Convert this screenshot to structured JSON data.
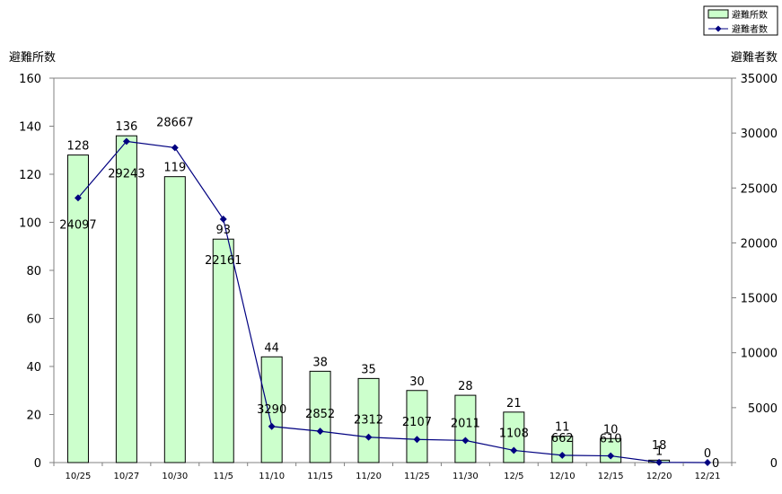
{
  "chart_data": {
    "type": "bar",
    "categories": [
      "10/25",
      "10/27",
      "10/30",
      "11/5",
      "11/10",
      "11/15",
      "11/20",
      "11/25",
      "11/30",
      "12/5",
      "12/10",
      "12/15",
      "12/20",
      "12/21"
    ],
    "ylabel": "避難所数",
    "y2label": "避難者数",
    "ylim": [
      0,
      160
    ],
    "y2lim": [
      0,
      35000
    ],
    "yticks": [
      0,
      20,
      40,
      60,
      80,
      100,
      120,
      140,
      160
    ],
    "y2ticks": [
      0,
      5000,
      10000,
      15000,
      20000,
      25000,
      30000,
      35000
    ],
    "grid": false,
    "legend_position": "top-right",
    "series": [
      {
        "name": "避難所数",
        "type": "bar",
        "axis": "left",
        "color": "#ccffcc",
        "values": [
          128,
          136,
          119,
          93,
          44,
          38,
          35,
          30,
          28,
          21,
          11,
          10,
          1,
          0
        ]
      },
      {
        "name": "避難者数",
        "type": "line",
        "axis": "right",
        "color": "#000080",
        "values": [
          24097,
          29243,
          28667,
          22161,
          3290,
          2852,
          2312,
          2107,
          2011,
          1108,
          662,
          610,
          18,
          0
        ]
      }
    ]
  }
}
